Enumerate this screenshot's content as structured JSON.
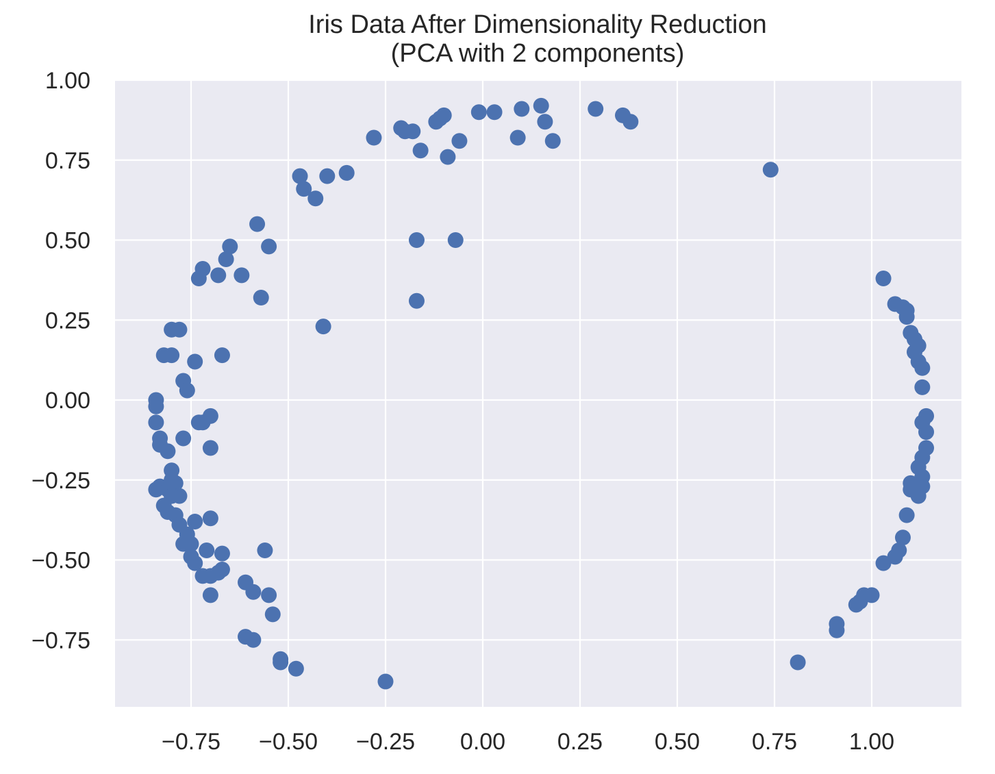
{
  "chart_data": {
    "type": "scatter",
    "title": "Iris Data After Dimensionality Reduction",
    "subtitle": "(PCA with 2 components)",
    "xlabel": "",
    "ylabel": "",
    "xlim": [
      -0.95,
      1.23
    ],
    "ylim": [
      -0.95,
      1.0
    ],
    "xticks": [
      "−0.75",
      "−0.50",
      "−0.25",
      "0.00",
      "0.25",
      "0.50",
      "0.75",
      "1.00"
    ],
    "xtick_values": [
      -0.75,
      -0.5,
      -0.25,
      0.0,
      0.25,
      0.5,
      0.75,
      1.0
    ],
    "yticks": [
      "1.00",
      "0.75",
      "0.50",
      "0.25",
      "0.00",
      "−0.25",
      "−0.50",
      "−0.75"
    ],
    "ytick_values": [
      1.0,
      0.75,
      0.5,
      0.25,
      0.0,
      -0.25,
      -0.5,
      -0.75
    ],
    "grid": true,
    "colors": {
      "background": "#eaeaf2",
      "grid": "#ffffff",
      "marker": "#4c72b0",
      "text": "#262626"
    },
    "series": [
      {
        "points": [
          [
            -0.16,
            0.78
          ],
          [
            -0.28,
            0.82
          ],
          [
            -0.21,
            0.85
          ],
          [
            -0.2,
            0.84
          ],
          [
            -0.18,
            0.84
          ],
          [
            -0.12,
            0.87
          ],
          [
            -0.11,
            0.88
          ],
          [
            -0.1,
            0.89
          ],
          [
            -0.01,
            0.9
          ],
          [
            0.03,
            0.9
          ],
          [
            0.1,
            0.91
          ],
          [
            0.15,
            0.92
          ],
          [
            0.16,
            0.87
          ],
          [
            0.09,
            0.82
          ],
          [
            0.18,
            0.81
          ],
          [
            -0.06,
            0.81
          ],
          [
            -0.09,
            0.76
          ],
          [
            0.29,
            0.91
          ],
          [
            0.36,
            0.89
          ],
          [
            0.38,
            0.87
          ],
          [
            0.74,
            0.72
          ],
          [
            -0.47,
            0.7
          ],
          [
            -0.46,
            0.66
          ],
          [
            -0.43,
            0.63
          ],
          [
            -0.4,
            0.7
          ],
          [
            -0.35,
            0.71
          ],
          [
            -0.58,
            0.55
          ],
          [
            -0.65,
            0.48
          ],
          [
            -0.55,
            0.48
          ],
          [
            -0.66,
            0.44
          ],
          [
            -0.72,
            0.41
          ],
          [
            -0.73,
            0.38
          ],
          [
            -0.68,
            0.39
          ],
          [
            -0.62,
            0.39
          ],
          [
            -0.57,
            0.32
          ],
          [
            -0.17,
            0.5
          ],
          [
            -0.07,
            0.5
          ],
          [
            -0.17,
            0.31
          ],
          [
            -0.41,
            0.23
          ],
          [
            -0.8,
            0.22
          ],
          [
            -0.78,
            0.22
          ],
          [
            -0.82,
            0.14
          ],
          [
            -0.8,
            0.14
          ],
          [
            -0.74,
            0.12
          ],
          [
            -0.67,
            0.14
          ],
          [
            -0.77,
            0.06
          ],
          [
            -0.76,
            0.03
          ],
          [
            -0.84,
            0.0
          ],
          [
            -0.84,
            -0.02
          ],
          [
            -0.84,
            -0.07
          ],
          [
            -0.73,
            -0.07
          ],
          [
            -0.72,
            -0.07
          ],
          [
            -0.7,
            -0.05
          ],
          [
            -0.77,
            -0.12
          ],
          [
            -0.83,
            -0.12
          ],
          [
            -0.83,
            -0.14
          ],
          [
            -0.81,
            -0.16
          ],
          [
            -0.7,
            -0.15
          ],
          [
            -0.8,
            -0.22
          ],
          [
            -0.8,
            -0.25
          ],
          [
            -0.79,
            -0.26
          ],
          [
            -0.83,
            -0.27
          ],
          [
            -0.84,
            -0.28
          ],
          [
            -0.81,
            -0.28
          ],
          [
            -0.78,
            -0.3
          ],
          [
            -0.8,
            -0.3
          ],
          [
            -0.82,
            -0.33
          ],
          [
            -0.81,
            -0.35
          ],
          [
            -0.79,
            -0.36
          ],
          [
            -0.78,
            -0.39
          ],
          [
            -0.74,
            -0.38
          ],
          [
            -0.7,
            -0.37
          ],
          [
            -0.76,
            -0.42
          ],
          [
            -0.77,
            -0.45
          ],
          [
            -0.75,
            -0.45
          ],
          [
            -0.75,
            -0.49
          ],
          [
            -0.74,
            -0.51
          ],
          [
            -0.71,
            -0.47
          ],
          [
            -0.67,
            -0.48
          ],
          [
            -0.56,
            -0.47
          ],
          [
            -0.72,
            -0.55
          ],
          [
            -0.7,
            -0.55
          ],
          [
            -0.68,
            -0.54
          ],
          [
            -0.67,
            -0.53
          ],
          [
            -0.7,
            -0.61
          ],
          [
            -0.61,
            -0.57
          ],
          [
            -0.59,
            -0.6
          ],
          [
            -0.55,
            -0.61
          ],
          [
            -0.54,
            -0.67
          ],
          [
            -0.61,
            -0.74
          ],
          [
            -0.59,
            -0.75
          ],
          [
            -0.52,
            -0.81
          ],
          [
            -0.52,
            -0.82
          ],
          [
            -0.48,
            -0.84
          ],
          [
            -0.25,
            -0.88
          ],
          [
            0.81,
            -0.82
          ],
          [
            0.91,
            -0.7
          ],
          [
            0.91,
            -0.72
          ],
          [
            0.96,
            -0.64
          ],
          [
            0.97,
            -0.63
          ],
          [
            0.98,
            -0.61
          ],
          [
            1.0,
            -0.61
          ],
          [
            1.03,
            -0.51
          ],
          [
            1.06,
            -0.49
          ],
          [
            1.07,
            -0.47
          ],
          [
            1.08,
            -0.43
          ],
          [
            1.09,
            -0.36
          ],
          [
            1.1,
            -0.28
          ],
          [
            1.1,
            -0.26
          ],
          [
            1.12,
            -0.3
          ],
          [
            1.13,
            -0.27
          ],
          [
            1.13,
            -0.24
          ],
          [
            1.12,
            -0.21
          ],
          [
            1.13,
            -0.18
          ],
          [
            1.14,
            -0.15
          ],
          [
            1.14,
            -0.1
          ],
          [
            1.13,
            -0.07
          ],
          [
            1.14,
            -0.05
          ],
          [
            1.13,
            0.04
          ],
          [
            1.13,
            0.1
          ],
          [
            1.12,
            0.12
          ],
          [
            1.11,
            0.15
          ],
          [
            1.12,
            0.17
          ],
          [
            1.11,
            0.19
          ],
          [
            1.1,
            0.21
          ],
          [
            1.09,
            0.26
          ],
          [
            1.09,
            0.28
          ],
          [
            1.08,
            0.29
          ],
          [
            1.06,
            0.3
          ],
          [
            1.03,
            0.38
          ]
        ]
      }
    ]
  }
}
